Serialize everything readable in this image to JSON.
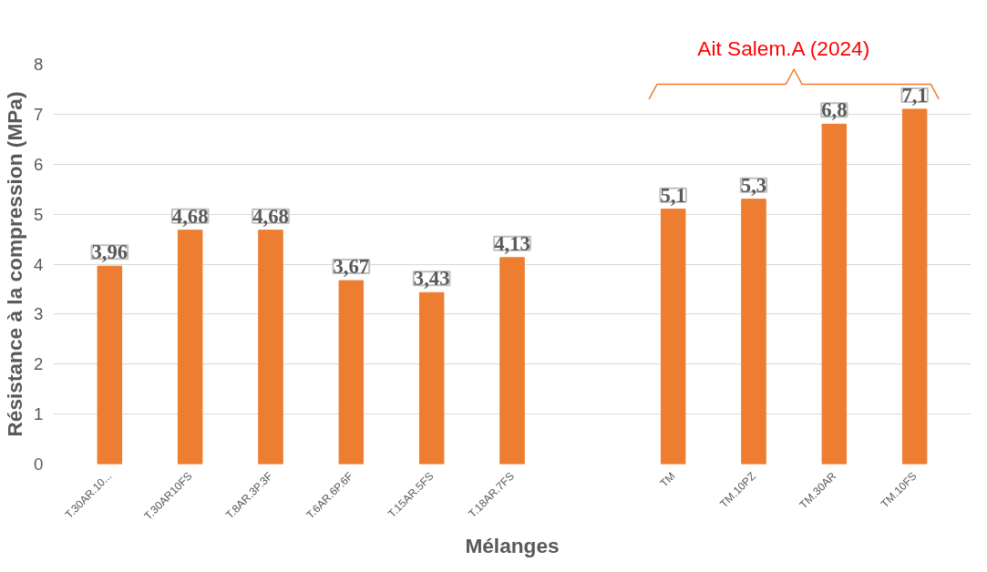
{
  "chart_data": {
    "type": "bar",
    "xlabel": "Mélanges",
    "ylabel": "Résistance à la compression (MPa)",
    "categories": [
      "T.30AR.10...",
      "T.30AR10FS",
      "T.8AR.3P.3F",
      "T.6AR.6P.6F",
      "T.15AR.5FS",
      "T.18AR.7FS",
      null,
      "TM",
      "TM.10PZ",
      "TM.30AR",
      "TM.10FS"
    ],
    "values": [
      3.96,
      4.68,
      4.68,
      3.67,
      3.43,
      4.13,
      null,
      5.1,
      5.3,
      6.8,
      7.1
    ],
    "value_labels": [
      "3,96",
      "4,68",
      "4,68",
      "3,67",
      "3,43",
      "4,13",
      null,
      "5,1",
      "5,3",
      "6,8",
      "7,1"
    ],
    "color": "#ed7d31",
    "ylim": [
      0,
      8
    ],
    "yticks": [
      0,
      1,
      2,
      3,
      4,
      5,
      6,
      7,
      8
    ],
    "grid": "y",
    "annotations": [
      "Ait Salem.A (2024)"
    ]
  }
}
